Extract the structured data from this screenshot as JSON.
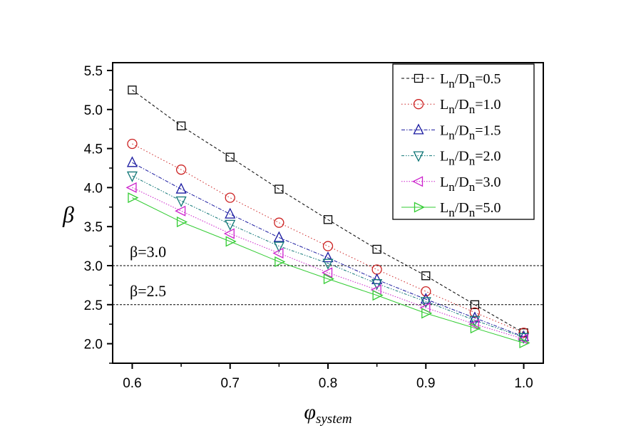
{
  "chart_data": {
    "type": "line",
    "title": "",
    "xlabel": "φ",
    "xlabel_sub": "system",
    "ylabel": "β",
    "xlim": [
      0.58,
      1.02
    ],
    "ylim": [
      1.75,
      5.6
    ],
    "xticks": [
      "0.6",
      "0.7",
      "0.8",
      "0.9",
      "1.0"
    ],
    "yticks": [
      "2.0",
      "2.5",
      "3.0",
      "3.5",
      "4.0",
      "4.5",
      "5.0",
      "5.5"
    ],
    "grid": false,
    "legend_position": "top-right",
    "x": [
      0.6,
      0.65,
      0.7,
      0.75,
      0.8,
      0.85,
      0.9,
      0.95,
      1.0
    ],
    "series": [
      {
        "name": "L_n/D_n=0.5",
        "label_main": "L",
        "label_sub1": "n",
        "label_mid": "/D",
        "label_sub2": "n",
        "label_val": "=0.5",
        "color": "#000000",
        "marker": "square",
        "dash": "4,3",
        "values": [
          5.25,
          4.79,
          4.39,
          3.98,
          3.59,
          3.21,
          2.87,
          2.5,
          2.14
        ]
      },
      {
        "name": "L_n/D_n=1.0",
        "label_main": "L",
        "label_sub1": "n",
        "label_mid": "/D",
        "label_sub2": "n",
        "label_val": "=1.0",
        "color": "#cc2222",
        "marker": "circle",
        "dash": "1.5,3",
        "values": [
          4.56,
          4.23,
          3.87,
          3.55,
          3.25,
          2.95,
          2.67,
          2.4,
          2.14
        ]
      },
      {
        "name": "L_n/D_n=1.5",
        "label_main": "L",
        "label_sub1": "n",
        "label_mid": "/D",
        "label_sub2": "n",
        "label_val": "=1.5",
        "color": "#1a1aa0",
        "marker": "triangle-up",
        "dash": "5,2,1.5,2",
        "values": [
          4.32,
          3.98,
          3.66,
          3.36,
          3.1,
          2.82,
          2.57,
          2.33,
          2.09
        ]
      },
      {
        "name": "L_n/D_n=2.0",
        "label_main": "L",
        "label_sub1": "n",
        "label_mid": "/D",
        "label_sub2": "n",
        "label_val": "=2.0",
        "color": "#117777",
        "marker": "triangle-down",
        "dash": "4,2,1.5,2,1.5,2",
        "values": [
          4.15,
          3.83,
          3.53,
          3.25,
          3.03,
          2.77,
          2.54,
          2.3,
          2.08
        ]
      },
      {
        "name": "L_n/D_n=3.0",
        "label_main": "L",
        "label_sub1": "n",
        "label_mid": "/D",
        "label_sub2": "n",
        "label_val": "=3.0",
        "color": "#cc22cc",
        "marker": "triangle-left",
        "dash": "1.5,2",
        "values": [
          4.0,
          3.7,
          3.41,
          3.16,
          2.91,
          2.69,
          2.46,
          2.25,
          2.06
        ]
      },
      {
        "name": "L_n/D_n=5.0",
        "label_main": "L",
        "label_sub1": "n",
        "label_mid": "/D",
        "label_sub2": "n",
        "label_val": "=5.0",
        "color": "#33cc33",
        "marker": "triangle-right",
        "dash": "",
        "values": [
          3.87,
          3.56,
          3.31,
          3.05,
          2.83,
          2.62,
          2.39,
          2.2,
          2.01
        ]
      }
    ],
    "reference_lines": [
      {
        "y": 3.0,
        "label": "β=3.0"
      },
      {
        "y": 2.5,
        "label": "β=2.5"
      }
    ]
  }
}
